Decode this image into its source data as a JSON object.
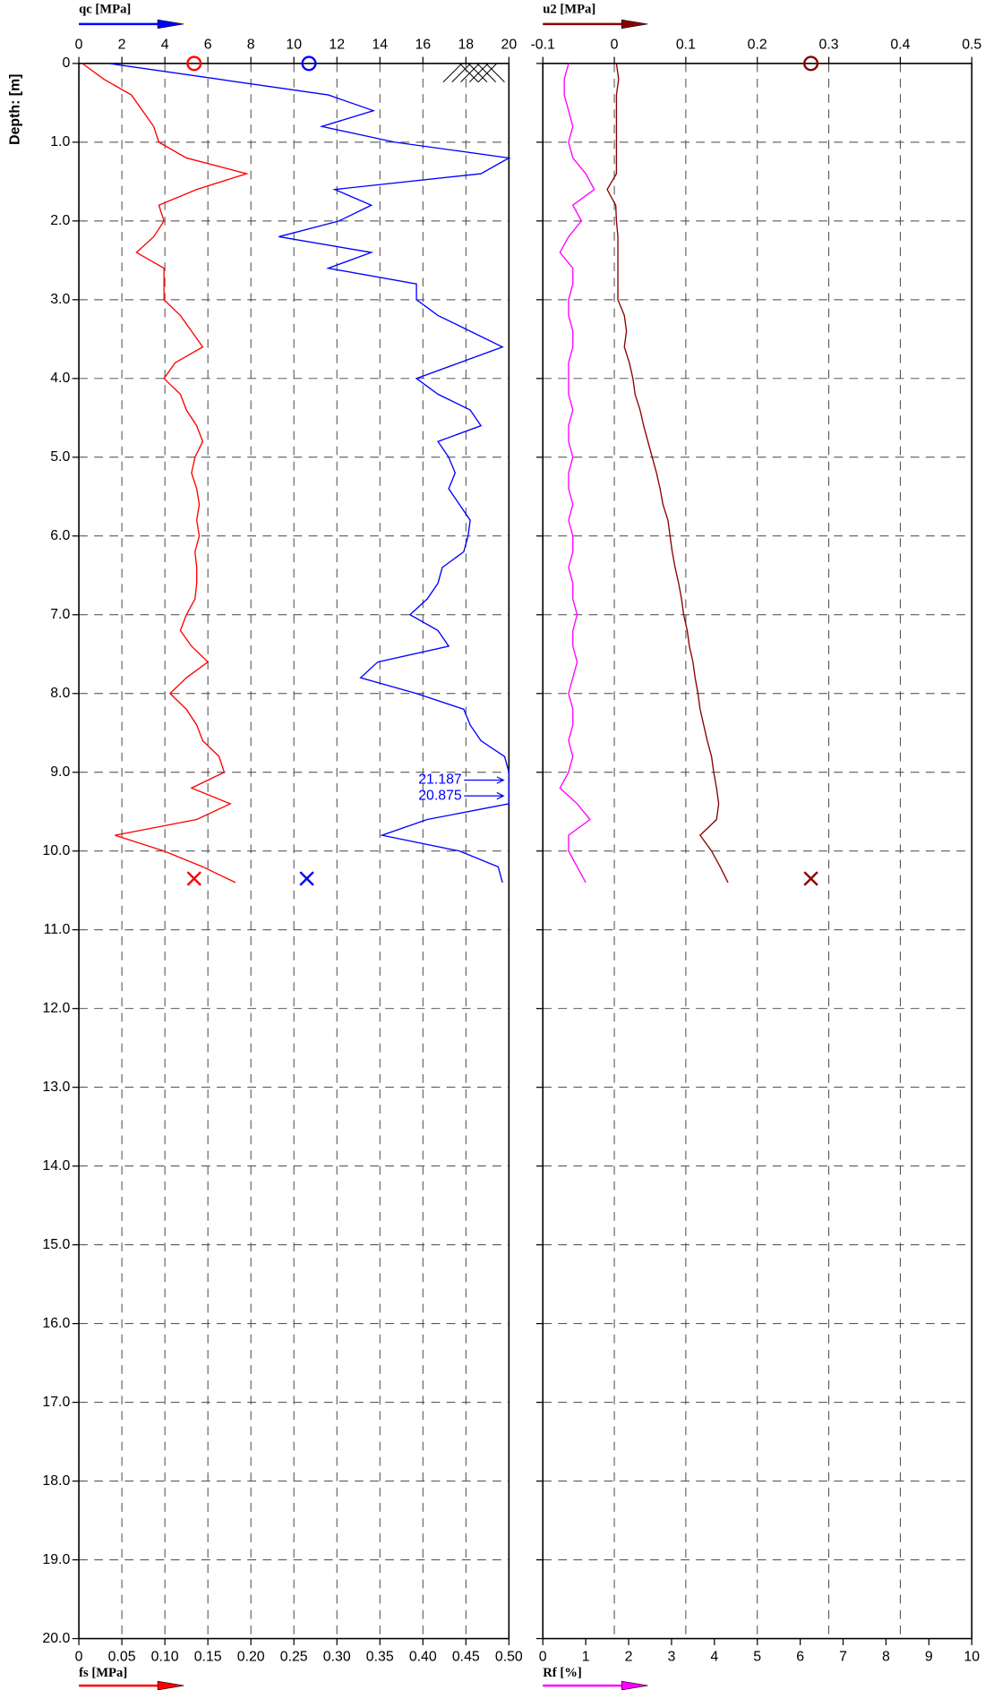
{
  "chart_data": [
    {
      "type": "line",
      "y_label": "Depth: [m]",
      "ylim": [
        0,
        20
      ],
      "yticks": [
        0,
        {
          "value": 1,
          "label": "1.0"
        },
        {
          "value": 2,
          "label": "2.0"
        },
        {
          "value": 3,
          "label": "3.0"
        },
        {
          "value": 4,
          "label": "4.0"
        },
        {
          "value": 5,
          "label": "5.0"
        },
        {
          "value": 6,
          "label": "6.0"
        },
        {
          "value": 7,
          "label": "7.0"
        },
        {
          "value": 8,
          "label": "8.0"
        },
        {
          "value": 9,
          "label": "9.0"
        },
        {
          "value": 10,
          "label": "10.0"
        },
        {
          "value": 11,
          "label": "11.0"
        },
        {
          "value": 12,
          "label": "12.0"
        },
        {
          "value": 13,
          "label": "13.0"
        },
        {
          "value": 14,
          "label": "14.0"
        },
        {
          "value": 15,
          "label": "15.0"
        },
        {
          "value": 16,
          "label": "16.0"
        },
        {
          "value": 17,
          "label": "17.0"
        },
        {
          "value": 18,
          "label": "18.0"
        },
        {
          "value": 19,
          "label": "19.0"
        },
        {
          "value": 20,
          "label": "20.0"
        }
      ],
      "depth": [
        0,
        0.2,
        0.4,
        0.6,
        0.8,
        1.0,
        1.2,
        1.4,
        1.6,
        1.8,
        2.0,
        2.2,
        2.4,
        2.6,
        2.8,
        3.0,
        3.2,
        3.4,
        3.6,
        3.8,
        4.0,
        4.2,
        4.4,
        4.6,
        4.8,
        5.0,
        5.2,
        5.4,
        5.6,
        5.8,
        6.0,
        6.2,
        6.4,
        6.6,
        6.8,
        7.0,
        7.2,
        7.4,
        7.6,
        7.8,
        8.0,
        8.2,
        8.4,
        8.6,
        8.8,
        9.0,
        9.2,
        9.4,
        9.6,
        9.8,
        10.0,
        10.2,
        10.4
      ],
      "x_label": "qc [MPa]",
      "xlim": [
        0,
        20
      ],
      "xticks": [
        0,
        2,
        4,
        6,
        8,
        10,
        12,
        14,
        16,
        18,
        20
      ],
      "x2_label": "fs [MPa]",
      "x2lim": [
        0,
        0.5
      ],
      "x2ticks": [
        0,
        0.05,
        {
          "value": 0.1,
          "label": "0.10"
        },
        0.15,
        {
          "value": 0.2,
          "label": "0.20"
        },
        0.25,
        {
          "value": 0.3,
          "label": "0.30"
        },
        0.35,
        {
          "value": 0.4,
          "label": "0.40"
        },
        0.45,
        {
          "value": 0.5,
          "label": "0.50"
        }
      ],
      "grid": true,
      "series": [
        {
          "color": "#0000ff",
          "axis": "x",
          "values": [
            1.4,
            6.5,
            11.6,
            13.7,
            11.3,
            14.7,
            20,
            18.7,
            11.9,
            13.6,
            12.1,
            9.3,
            13.6,
            11.6,
            15.7,
            15.7,
            16.7,
            18.2,
            19.7,
            17.7,
            15.7,
            16.7,
            18.2,
            18.7,
            16.7,
            17.2,
            17.5,
            17.2,
            17.7,
            18.2,
            18.1,
            17.9,
            16.9,
            16.7,
            16.2,
            15.4,
            16.7,
            17.2,
            13.9,
            13.1,
            15.7,
            17.9,
            18.2,
            18.7,
            19.8,
            20,
            20,
            20,
            16.2,
            14.1,
            17.7,
            19.5,
            19.7
          ]
        },
        {
          "color": "#ff0000",
          "axis": "x2",
          "values": [
            0.004,
            0.029,
            0.061,
            0.074,
            0.087,
            0.093,
            0.125,
            0.195,
            0.137,
            0.093,
            0.099,
            0.087,
            0.067,
            0.099,
            0.099,
            0.099,
            0.118,
            0.131,
            0.144,
            0.112,
            0.099,
            0.118,
            0.125,
            0.137,
            0.144,
            0.135,
            0.131,
            0.137,
            0.14,
            0.137,
            0.14,
            0.135,
            0.137,
            0.137,
            0.135,
            0.125,
            0.118,
            0.131,
            0.15,
            0.125,
            0.106,
            0.125,
            0.137,
            0.144,
            0.163,
            0.169,
            0.131,
            0.176,
            0.137,
            0.042,
            0.099,
            0.144,
            0.182
          ]
        }
      ],
      "markers": [
        {
          "axis": "x2",
          "depth": 0,
          "value": 0.134,
          "symbol": "circle",
          "color": "#ff0000"
        },
        {
          "axis": "x",
          "depth": 0,
          "value": 10.7,
          "symbol": "circle",
          "color": "#0000ff"
        },
        {
          "axis": "x2",
          "depth": 10.35,
          "value": 0.134,
          "symbol": "cross",
          "color": "#ff0000"
        },
        {
          "axis": "x",
          "depth": 10.35,
          "value": 10.6,
          "symbol": "cross",
          "color": "#0000ff"
        }
      ],
      "annotations": [
        {
          "value": 21.187,
          "depth": 9.1,
          "color": "#0000ff"
        },
        {
          "value": 20.875,
          "depth": 9.3,
          "color": "#0000ff"
        }
      ]
    },
    {
      "type": "line",
      "x_label": "u2 [MPa]",
      "xlim": [
        -0.1,
        0.5
      ],
      "xticks": [
        -0.1,
        0,
        0.1,
        0.2,
        0.3,
        0.4,
        0.5
      ],
      "x2_label": "Rf [%]",
      "x2lim": [
        0,
        10
      ],
      "x2ticks": [
        0,
        1,
        2,
        3,
        4,
        5,
        6,
        7,
        8,
        9,
        10
      ],
      "grid": true,
      "series": [
        {
          "color": "#8b0000",
          "axis": "x",
          "values": [
            0.003,
            0.006,
            0.003,
            0.003,
            0.003,
            0.003,
            0.003,
            0.003,
            -0.01,
            0.002,
            0.003,
            0.005,
            0.005,
            0.005,
            0.005,
            0.005,
            0.014,
            0.017,
            0.014,
            0.021,
            0.026,
            0.029,
            0.036,
            0.041,
            0.047,
            0.053,
            0.059,
            0.064,
            0.068,
            0.075,
            0.078,
            0.081,
            0.085,
            0.09,
            0.094,
            0.097,
            0.102,
            0.105,
            0.11,
            0.113,
            0.117,
            0.12,
            0.125,
            0.13,
            0.136,
            0.139,
            0.143,
            0.146,
            0.143,
            0.12,
            0.136,
            0.148,
            0.159
          ]
        },
        {
          "color": "#ff00ff",
          "axis": "x2",
          "values": [
            0.6,
            0.5,
            0.5,
            0.6,
            0.7,
            0.6,
            0.7,
            1.0,
            1.2,
            0.7,
            0.9,
            0.6,
            0.4,
            0.7,
            0.7,
            0.6,
            0.6,
            0.7,
            0.7,
            0.6,
            0.6,
            0.6,
            0.7,
            0.6,
            0.6,
            0.7,
            0.6,
            0.6,
            0.7,
            0.6,
            0.7,
            0.7,
            0.6,
            0.7,
            0.7,
            0.8,
            0.7,
            0.7,
            0.8,
            0.7,
            0.6,
            0.7,
            0.7,
            0.6,
            0.7,
            0.6,
            0.4,
            0.8,
            1.1,
            0.6,
            0.6,
            0.8,
            1.0
          ]
        }
      ],
      "markers": [
        {
          "axis": "x",
          "depth": 0,
          "value": 0.275,
          "symbol": "circle",
          "color": "#8b0000"
        },
        {
          "axis": "x",
          "depth": 10.35,
          "value": 0.275,
          "symbol": "cross",
          "color": "#8b0000"
        }
      ]
    }
  ]
}
